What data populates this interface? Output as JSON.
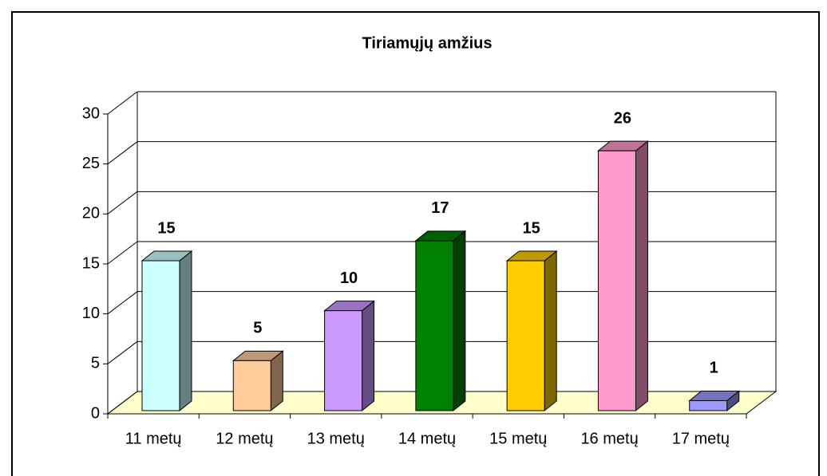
{
  "chart_data": {
    "type": "bar3d",
    "title": "Tiriamųjų amžius",
    "categories": [
      "11 metų",
      "12 metų",
      "13 metų",
      "14 metų",
      "15 metų",
      "16 metų",
      "17 metų"
    ],
    "values": [
      15,
      5,
      10,
      17,
      15,
      26,
      1
    ],
    "colors": [
      "#ccffff",
      "#ffcc99",
      "#cc99ff",
      "#008000",
      "#ffcc00",
      "#ff99cc",
      "#9999ff"
    ],
    "ylim": [
      0,
      30
    ],
    "yticks": [
      0,
      5,
      10,
      15,
      20,
      25,
      30
    ],
    "grid": true
  }
}
